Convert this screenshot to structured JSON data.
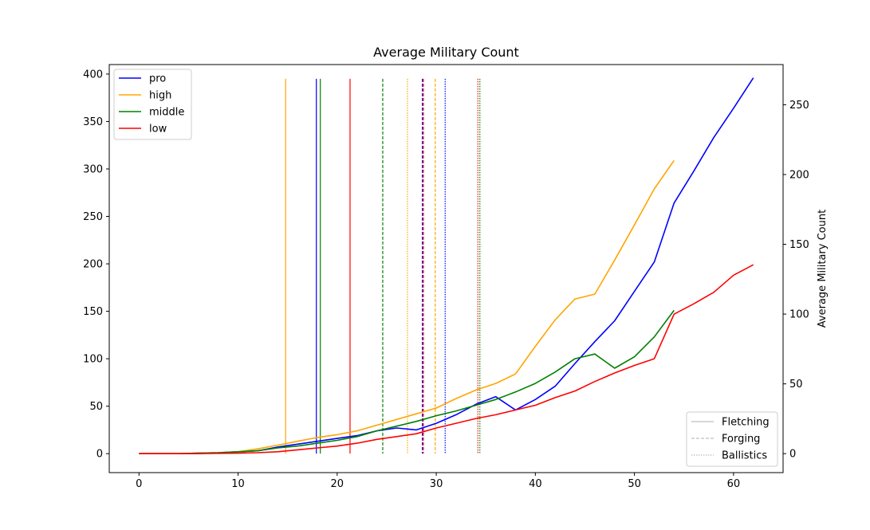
{
  "chart_data": {
    "type": "line",
    "title": "Average Military Count",
    "xlabel": "",
    "ylabel": "",
    "y2label": "Average Military Count",
    "xlim": [
      -3,
      65
    ],
    "ylim": [
      -20,
      410
    ],
    "y2lim": [
      -13.6,
      278.8
    ],
    "x_ticks": [
      0,
      10,
      20,
      30,
      40,
      50,
      60
    ],
    "y_ticks": [
      0,
      50,
      100,
      150,
      200,
      250,
      300,
      350,
      400
    ],
    "y2_ticks": [
      0,
      50,
      100,
      150,
      200,
      250
    ],
    "grid": false,
    "legend_position": "top-left",
    "style_legend_position": "bottom-right",
    "series": [
      {
        "name": "pro",
        "color": "#0000ff",
        "x": [
          0,
          2,
          4,
          6,
          8,
          10,
          12,
          14,
          16,
          18,
          20,
          22,
          24,
          26,
          28,
          30,
          32,
          34,
          36,
          38,
          40,
          42,
          44,
          46,
          48,
          50,
          52,
          54,
          56,
          58,
          60,
          62
        ],
        "y": [
          0,
          0,
          0,
          0.5,
          1,
          2,
          3,
          7,
          10,
          13,
          16,
          19,
          24,
          27,
          25,
          32,
          41,
          52,
          60,
          46,
          57,
          71,
          95,
          118,
          140,
          171,
          202,
          264,
          298,
          333,
          364,
          396
        ]
      },
      {
        "name": "high",
        "color": "#ffa500",
        "x": [
          0,
          2,
          4,
          6,
          8,
          10,
          12,
          14,
          16,
          18,
          20,
          22,
          24,
          26,
          28,
          30,
          32,
          34,
          36,
          38,
          40,
          42,
          44,
          46,
          48,
          50,
          52,
          54
        ],
        "y": [
          0,
          0,
          0,
          0.5,
          1,
          2,
          5,
          9,
          13,
          17,
          20,
          24,
          30,
          36,
          42,
          48,
          58,
          67,
          74,
          84,
          113,
          141,
          163,
          168,
          204,
          241,
          279,
          309
        ]
      },
      {
        "name": "middle",
        "color": "#008000",
        "x": [
          0,
          2,
          4,
          6,
          8,
          10,
          12,
          14,
          16,
          18,
          20,
          22,
          24,
          26,
          28,
          30,
          32,
          34,
          36,
          38,
          40,
          42,
          44,
          46,
          48,
          50,
          52,
          54
        ],
        "y": [
          0,
          0,
          0,
          0.5,
          1,
          2,
          3,
          6,
          8,
          11,
          14,
          18,
          24,
          29,
          34,
          40,
          45,
          51,
          57,
          65,
          74,
          86,
          100,
          105,
          90,
          102,
          123,
          151
        ]
      },
      {
        "name": "low",
        "color": "#ff0000",
        "x": [
          0,
          2,
          4,
          6,
          8,
          10,
          12,
          14,
          16,
          18,
          20,
          22,
          24,
          26,
          28,
          30,
          32,
          34,
          36,
          38,
          40,
          42,
          44,
          46,
          48,
          50,
          52,
          54,
          56,
          58,
          60,
          62
        ],
        "y": [
          0,
          0,
          0,
          0,
          0.3,
          0.5,
          1,
          2,
          4,
          6,
          8,
          11,
          15,
          18,
          21,
          27,
          32,
          37,
          41,
          46,
          51,
          59,
          66,
          76,
          85,
          93,
          100,
          147,
          158,
          170,
          188,
          199
        ]
      }
    ],
    "vertical_markers": [
      {
        "x": 14.8,
        "color": "#ffa500",
        "style": "solid"
      },
      {
        "x": 17.9,
        "color": "#0000ff",
        "style": "solid"
      },
      {
        "x": 18.3,
        "color": "#008000",
        "style": "solid"
      },
      {
        "x": 21.3,
        "color": "#ff0000",
        "style": "solid"
      },
      {
        "x": 24.6,
        "color": "#008000",
        "style": "dashed"
      },
      {
        "x": 28.6,
        "color": "#0000ff",
        "style": "dashed"
      },
      {
        "x": 28.7,
        "color": "#ff0000",
        "style": "dashed"
      },
      {
        "x": 29.9,
        "color": "#ffa500",
        "style": "dashed"
      },
      {
        "x": 27.1,
        "color": "#ffa500",
        "style": "dotted"
      },
      {
        "x": 30.9,
        "color": "#0000ff",
        "style": "dotted"
      },
      {
        "x": 34.2,
        "color": "#ff0000",
        "style": "dotted"
      },
      {
        "x": 34.4,
        "color": "#008000",
        "style": "dotted"
      }
    ],
    "marker_top": 395,
    "style_legend": [
      {
        "label": "Fletching",
        "style": "solid"
      },
      {
        "label": "Forging",
        "style": "dashed"
      },
      {
        "label": "Ballistics",
        "style": "dotted"
      }
    ]
  }
}
